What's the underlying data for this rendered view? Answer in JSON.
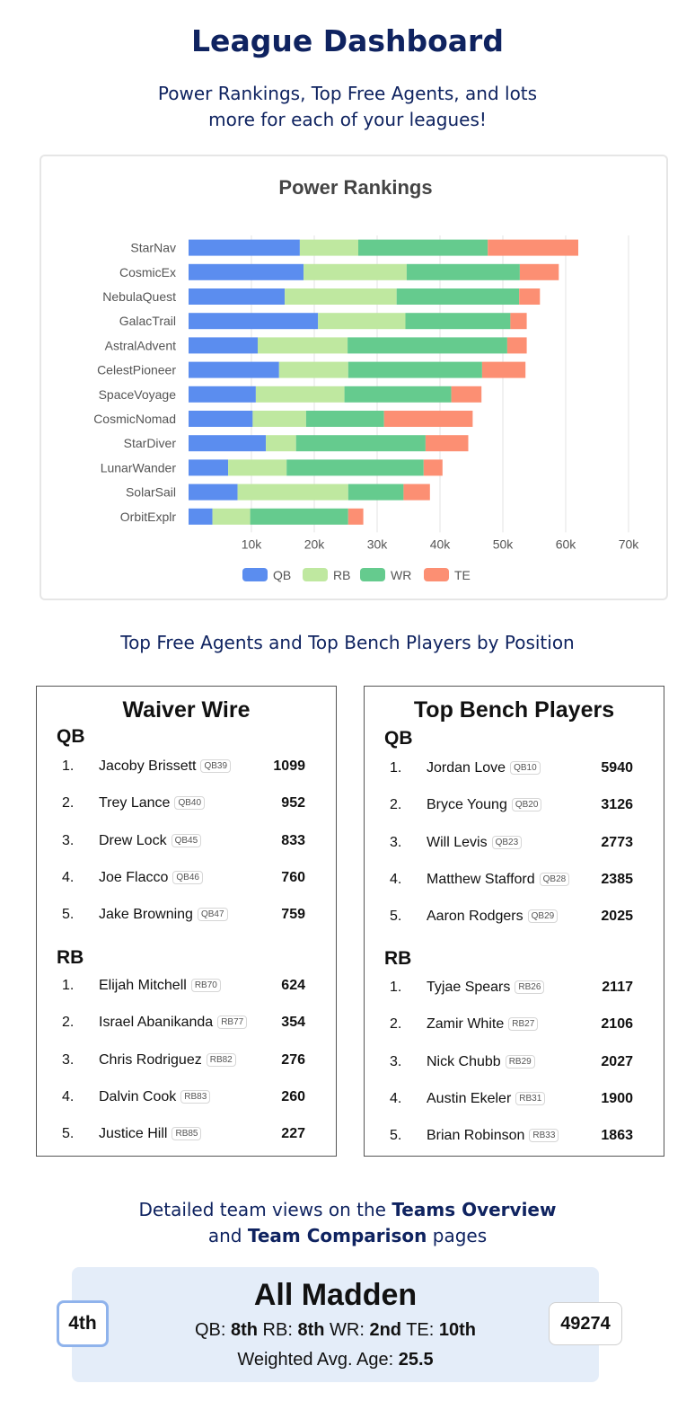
{
  "header": {
    "title": "League Dashboard",
    "subtitle_line1": "Power Rankings, Top Free Agents, and lots",
    "subtitle_line2": "more for each of your leagues!"
  },
  "chart_data": {
    "type": "bar",
    "orientation": "horizontal",
    "stacked": true,
    "title": "Power Rankings",
    "categories": [
      "StarNav",
      "CosmicEx",
      "NebulaQuest",
      "GalacTrail",
      "AstralAdvent",
      "CelestPioneer",
      "SpaceVoyage",
      "CosmicNomad",
      "StarDiver",
      "LunarWander",
      "SolarSail",
      "OrbitExplr"
    ],
    "series": [
      {
        "name": "QB",
        "color": "#5b8def",
        "values": [
          17700,
          18300,
          15300,
          20600,
          11000,
          14400,
          10700,
          10200,
          12300,
          6300,
          7800,
          3800
        ]
      },
      {
        "name": "RB",
        "color": "#bfe8a0",
        "values": [
          9300,
          16400,
          17800,
          13900,
          14300,
          11000,
          14100,
          8500,
          4800,
          9300,
          17600,
          6000
        ]
      },
      {
        "name": "WR",
        "color": "#65cb8e",
        "values": [
          20600,
          18000,
          19500,
          16700,
          25400,
          21300,
          17000,
          12400,
          20600,
          21800,
          8800,
          15600
        ]
      },
      {
        "name": "TE",
        "color": "#fc8f73",
        "values": [
          14400,
          6200,
          3300,
          2600,
          3100,
          6900,
          4800,
          14100,
          6800,
          3000,
          4200,
          2400
        ]
      }
    ],
    "xlim": [
      0,
      70000
    ],
    "xticks": [
      "10k",
      "20k",
      "30k",
      "40k",
      "50k",
      "60k",
      "70k"
    ],
    "xtick_values": [
      10000,
      20000,
      30000,
      40000,
      50000,
      60000,
      70000
    ],
    "grid": true,
    "legend": "bottom"
  },
  "section2_heading": "Top Free Agents and Top Bench Players by Position",
  "waiver": {
    "title": "Waiver Wire",
    "qb_heading": "QB",
    "rb_heading": "RB",
    "qb": [
      {
        "rank": "1.",
        "name": "Jacoby Brissett",
        "tag": "QB39",
        "value": "1099"
      },
      {
        "rank": "2.",
        "name": "Trey Lance",
        "tag": "QB40",
        "value": "952"
      },
      {
        "rank": "3.",
        "name": "Drew Lock",
        "tag": "QB45",
        "value": "833"
      },
      {
        "rank": "4.",
        "name": "Joe Flacco",
        "tag": "QB46",
        "value": "760"
      },
      {
        "rank": "5.",
        "name": "Jake Browning",
        "tag": "QB47",
        "value": "759"
      }
    ],
    "rb": [
      {
        "rank": "1.",
        "name": "Elijah Mitchell",
        "tag": "RB70",
        "value": "624"
      },
      {
        "rank": "2.",
        "name": "Israel Abanikanda",
        "tag": "RB77",
        "value": "354"
      },
      {
        "rank": "3.",
        "name": "Chris Rodriguez",
        "tag": "RB82",
        "value": "276"
      },
      {
        "rank": "4.",
        "name": "Dalvin Cook",
        "tag": "RB83",
        "value": "260"
      },
      {
        "rank": "5.",
        "name": "Justice Hill",
        "tag": "RB85",
        "value": "227"
      }
    ]
  },
  "bench": {
    "title": "Top Bench Players",
    "qb_heading": "QB",
    "rb_heading": "RB",
    "qb": [
      {
        "rank": "1.",
        "name": "Jordan Love",
        "tag": "QB10",
        "value": "5940"
      },
      {
        "rank": "2.",
        "name": "Bryce Young",
        "tag": "QB20",
        "value": "3126"
      },
      {
        "rank": "3.",
        "name": "Will Levis",
        "tag": "QB23",
        "value": "2773"
      },
      {
        "rank": "4.",
        "name": "Matthew Stafford",
        "tag": "QB28",
        "value": "2385"
      },
      {
        "rank": "5.",
        "name": "Aaron Rodgers",
        "tag": "QB29",
        "value": "2025"
      }
    ],
    "rb": [
      {
        "rank": "1.",
        "name": "Tyjae Spears",
        "tag": "RB26",
        "value": "2117"
      },
      {
        "rank": "2.",
        "name": "Zamir White",
        "tag": "RB27",
        "value": "2106"
      },
      {
        "rank": "3.",
        "name": "Nick Chubb",
        "tag": "RB29",
        "value": "2027"
      },
      {
        "rank": "4.",
        "name": "Austin Ekeler",
        "tag": "RB31",
        "value": "1900"
      },
      {
        "rank": "5.",
        "name": "Brian Robinson",
        "tag": "RB33",
        "value": "1863"
      }
    ]
  },
  "section3": {
    "line1_pre": "Detailed team views on the ",
    "line1_bold": "Teams Overview",
    "line2_pre": "and ",
    "line2_bold": "Team Comparison",
    "line2_post": " pages"
  },
  "team_card": {
    "rank": "4th",
    "name": "All Madden",
    "qb_label": "QB: ",
    "qb_value": "8th",
    "rb_label": " RB: ",
    "rb_value": "8th",
    "wr_label": " WR: ",
    "wr_value": "2nd",
    "te_label": " TE: ",
    "te_value": "10th",
    "age_label": "Weighted Avg. Age: ",
    "age_value": "25.5",
    "score": "49274"
  }
}
